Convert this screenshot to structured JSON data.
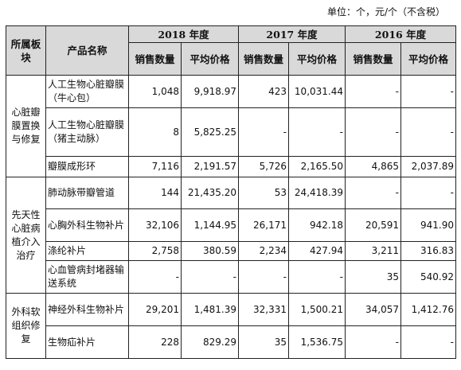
{
  "unit_note": "单位：个，元/个（不含税）",
  "headers": {
    "segment": "所属板块",
    "product": "产品名称",
    "years": [
      "2018 年度",
      "2017 年度",
      "2016 年度"
    ],
    "qty": "销售数量",
    "price": "平均价格"
  },
  "groups": [
    {
      "segment": "心脏瓣膜置换与修复",
      "rows": [
        {
          "product": "人工生物心脏瓣膜（牛心包）",
          "values": [
            "1,048",
            "9,918.97",
            "423",
            "10,031.44",
            "-",
            "-"
          ]
        },
        {
          "product": "人工生物心脏瓣膜（猪主动脉）",
          "values": [
            "8",
            "5,825.25",
            "-",
            "-",
            "-",
            "-"
          ]
        },
        {
          "product": "瓣膜成形环",
          "values": [
            "7,116",
            "2,191.57",
            "5,726",
            "2,165.50",
            "4,865",
            "2,037.89"
          ]
        }
      ]
    },
    {
      "segment": "先天性心脏病植介入治疗",
      "rows": [
        {
          "product": "肺动脉带瓣管道",
          "values": [
            "144",
            "21,435.20",
            "53",
            "24,418.39",
            "-",
            "-"
          ]
        },
        {
          "product": "心胸外科生物补片",
          "values": [
            "32,106",
            "1,144.95",
            "26,171",
            "942.18",
            "20,591",
            "941.90"
          ]
        },
        {
          "product": "涤纶补片",
          "values": [
            "2,758",
            "380.59",
            "2,234",
            "427.94",
            "3,211",
            "316.83"
          ]
        },
        {
          "product": "心血管病封堵器输送系统",
          "values": [
            "-",
            "-",
            "-",
            "-",
            "35",
            "540.92"
          ]
        }
      ]
    },
    {
      "segment": "外科软组织修复",
      "rows": [
        {
          "product": "神经外科生物补片",
          "values": [
            "29,201",
            "1,481.39",
            "32,331",
            "1,500.21",
            "34,057",
            "1,412.76"
          ]
        },
        {
          "product": "生物疝补片",
          "values": [
            "228",
            "829.29",
            "35",
            "1,536.75",
            "-",
            "-"
          ]
        }
      ]
    }
  ]
}
